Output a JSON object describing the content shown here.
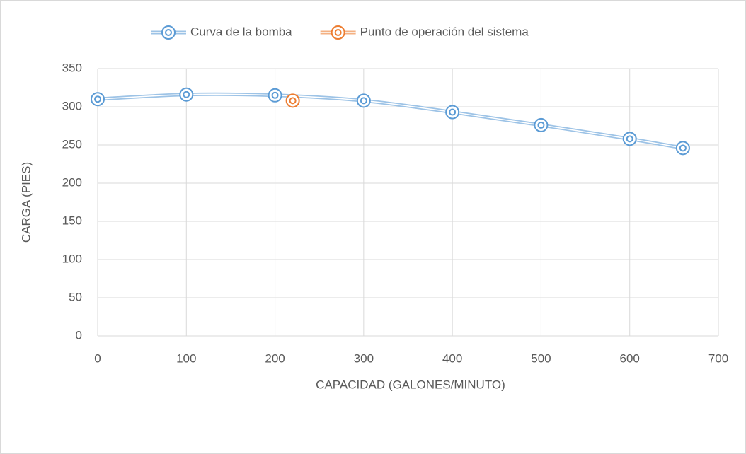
{
  "chart_data": {
    "type": "scatter",
    "x_label": "CAPACIDAD (GALONES/MINUTO)",
    "y_label": "CARGA (PIES)",
    "series": [
      {
        "name": "Curva de la bomba",
        "color": "#5b9bd5",
        "smooth": true,
        "x": [
          0,
          100,
          200,
          300,
          400,
          500,
          600,
          660
        ],
        "values": [
          310,
          316,
          315,
          308,
          293,
          276,
          258,
          246
        ]
      },
      {
        "name": "Punto de operación del sistema",
        "color": "#ed7d31",
        "smooth": true,
        "x": [
          220
        ],
        "values": [
          308
        ]
      }
    ],
    "xlim": [
      0,
      700
    ],
    "xticks": [
      0,
      100,
      200,
      300,
      400,
      500,
      600,
      700
    ],
    "ylim": [
      0,
      350
    ],
    "yticks": [
      0,
      50,
      100,
      150,
      200,
      250,
      300,
      350
    ],
    "grid": true,
    "legend": "top"
  }
}
